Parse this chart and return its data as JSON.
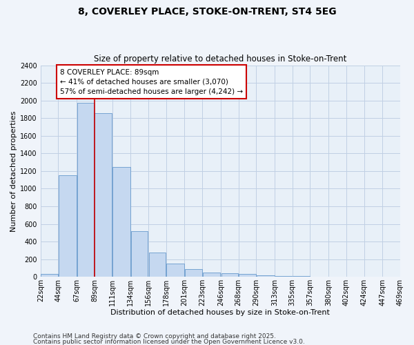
{
  "title": "8, COVERLEY PLACE, STOKE-ON-TRENT, ST4 5EG",
  "subtitle": "Size of property relative to detached houses in Stoke-on-Trent",
  "xlabel": "Distribution of detached houses by size in Stoke-on-Trent",
  "ylabel": "Number of detached properties",
  "footnote1": "Contains HM Land Registry data © Crown copyright and database right 2025.",
  "footnote2": "Contains public sector information licensed under the Open Government Licence v3.0.",
  "annotation_title": "8 COVERLEY PLACE: 89sqm",
  "annotation_line1": "← 41% of detached houses are smaller (3,070)",
  "annotation_line2": "57% of semi-detached houses are larger (4,242) →",
  "property_size_bin": 3,
  "bar_edges": [
    22,
    44,
    67,
    89,
    111,
    134,
    156,
    178,
    201,
    223,
    246,
    268,
    290,
    313,
    335,
    357,
    380,
    402,
    424,
    447,
    469
  ],
  "bar_heights": [
    30,
    1150,
    1970,
    1855,
    1245,
    520,
    275,
    150,
    90,
    45,
    40,
    35,
    15,
    10,
    8,
    5,
    5,
    5,
    5,
    5
  ],
  "bar_color": "#c5d8f0",
  "bar_edge_color": "#6699cc",
  "vline_x": 89,
  "vline_color": "#cc0000",
  "annotation_box_color": "#cc0000",
  "bg_color": "#f0f4fa",
  "plot_bg_color": "#e8f0f8",
  "grid_color": "#c0d0e4",
  "ylim": [
    0,
    2400
  ],
  "yticks": [
    0,
    200,
    400,
    600,
    800,
    1000,
    1200,
    1400,
    1600,
    1800,
    2000,
    2200,
    2400
  ],
  "title_fontsize": 10,
  "subtitle_fontsize": 8.5,
  "axis_label_fontsize": 8,
  "tick_fontsize": 7,
  "annotation_fontsize": 7.5,
  "footnote_fontsize": 6.5
}
